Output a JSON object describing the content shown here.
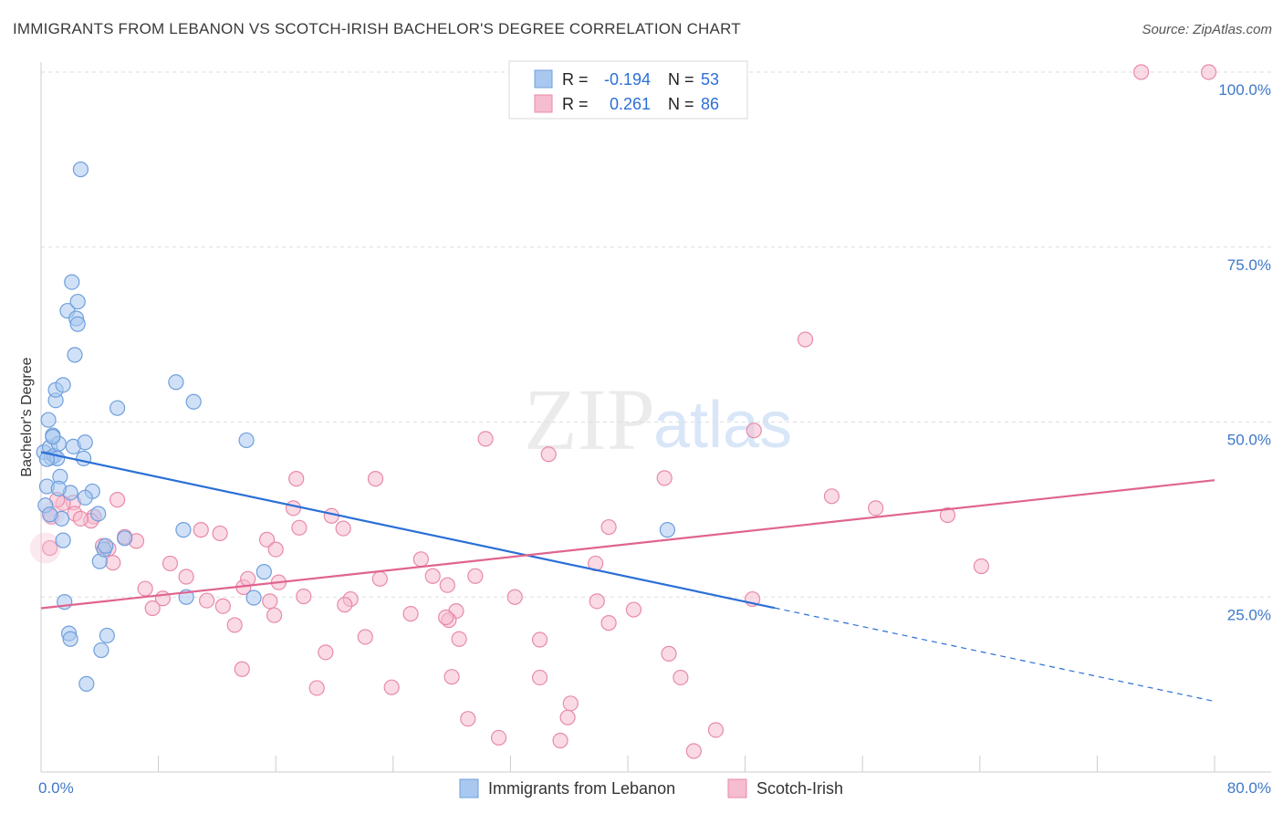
{
  "title": "IMMIGRANTS FROM LEBANON VS SCOTCH-IRISH BACHELOR'S DEGREE CORRELATION CHART",
  "source": "Source: ZipAtlas.com",
  "watermark": {
    "zip": "ZIP",
    "atlas": "atlas"
  },
  "colors": {
    "lebanon_fill": "#a9c8f0",
    "lebanon_stroke": "#6f9fdc",
    "lebanon_line": "#2b6fd6",
    "scotch_fill": "#f6bcd0",
    "scotch_stroke": "#e88aa8",
    "scotch_line": "#e0648f",
    "axis_label": "#3f78c8",
    "grid": "#dddddd"
  },
  "legend": {
    "rows": [
      {
        "r_label": "R =",
        "r_value": "-0.194",
        "n_label": "N =",
        "n_value": "53"
      },
      {
        "r_label": "R =",
        "r_value": "0.261",
        "n_label": "N =",
        "n_value": "86"
      }
    ]
  },
  "chart_data": {
    "type": "scatter",
    "title": "IMMIGRANTS FROM LEBANON VS SCOTCH-IRISH BACHELOR'S DEGREE CORRELATION CHART",
    "xlabel": "",
    "ylabel": "Bachelor's Degree",
    "xlim": [
      0,
      80
    ],
    "ylim": [
      0,
      100
    ],
    "x_tick_labels": [
      "0.0%",
      "80.0%"
    ],
    "y_ticks": [
      25,
      50,
      75,
      100
    ],
    "y_tick_labels": [
      "25.0%",
      "50.0%",
      "75.0%",
      "100.0%"
    ],
    "grid": true,
    "legend_position": "bottom",
    "series": [
      {
        "name": "Immigrants from Lebanon",
        "r": -0.194,
        "n": 53,
        "trend": {
          "x": [
            0,
            80
          ],
          "y": [
            45.7,
            10.1
          ],
          "solid_until_x": 50
        },
        "points": [
          [
            0.2,
            45.7
          ],
          [
            0.3,
            38.1
          ],
          [
            0.4,
            40.8
          ],
          [
            0.5,
            50.3
          ],
          [
            0.6,
            46.4
          ],
          [
            0.7,
            44.9
          ],
          [
            0.8,
            48.1
          ],
          [
            0.9,
            45.2
          ],
          [
            1.0,
            53.1
          ],
          [
            1.1,
            44.8
          ],
          [
            1.2,
            46.9
          ],
          [
            1.3,
            42.2
          ],
          [
            1.4,
            36.2
          ],
          [
            1.5,
            33.1
          ],
          [
            1.6,
            24.3
          ],
          [
            1.8,
            65.9
          ],
          [
            1.9,
            19.8
          ],
          [
            2.0,
            19.0
          ],
          [
            2.1,
            70.0
          ],
          [
            2.2,
            46.5
          ],
          [
            2.4,
            64.8
          ],
          [
            2.5,
            67.2
          ],
          [
            2.3,
            59.6
          ],
          [
            2.7,
            86.1
          ],
          [
            3.0,
            47.1
          ],
          [
            3.1,
            12.6
          ],
          [
            3.5,
            40.1
          ],
          [
            3.9,
            36.9
          ],
          [
            4.0,
            30.1
          ],
          [
            4.1,
            17.4
          ],
          [
            4.3,
            31.8
          ],
          [
            4.5,
            19.5
          ],
          [
            5.2,
            52.0
          ],
          [
            5.7,
            33.4
          ],
          [
            9.2,
            55.7
          ],
          [
            10.4,
            52.9
          ],
          [
            9.9,
            25.0
          ],
          [
            9.7,
            34.6
          ],
          [
            14.0,
            47.4
          ],
          [
            14.5,
            24.9
          ],
          [
            15.2,
            28.6
          ],
          [
            42.7,
            34.6
          ],
          [
            1.0,
            54.6
          ],
          [
            0.4,
            44.7
          ],
          [
            2.5,
            64.0
          ],
          [
            1.5,
            55.3
          ],
          [
            2.0,
            39.9
          ],
          [
            0.8,
            47.9
          ],
          [
            1.2,
            40.5
          ],
          [
            3.0,
            39.2
          ],
          [
            0.6,
            36.8
          ],
          [
            4.4,
            32.3
          ],
          [
            2.9,
            44.8
          ]
        ]
      },
      {
        "name": "Scotch-Irish",
        "r": 0.261,
        "n": 86,
        "trend": {
          "x": [
            0,
            80
          ],
          "y": [
            23.4,
            41.7
          ]
        },
        "points": [
          [
            75.0,
            100.0
          ],
          [
            79.6,
            100.0
          ],
          [
            52.1,
            61.8
          ],
          [
            48.6,
            48.8
          ],
          [
            30.3,
            47.6
          ],
          [
            34.6,
            45.4
          ],
          [
            42.5,
            42.0
          ],
          [
            17.4,
            41.9
          ],
          [
            22.8,
            41.9
          ],
          [
            53.9,
            39.4
          ],
          [
            56.9,
            37.7
          ],
          [
            61.8,
            36.7
          ],
          [
            64.1,
            29.4
          ],
          [
            37.8,
            29.8
          ],
          [
            38.7,
            35.0
          ],
          [
            37.9,
            24.4
          ],
          [
            38.7,
            21.3
          ],
          [
            40.4,
            23.2
          ],
          [
            42.8,
            16.9
          ],
          [
            43.6,
            13.5
          ],
          [
            34.0,
            18.9
          ],
          [
            35.9,
            7.8
          ],
          [
            36.1,
            9.8
          ],
          [
            35.4,
            4.5
          ],
          [
            32.3,
            25.0
          ],
          [
            34.0,
            13.5
          ],
          [
            31.2,
            4.9
          ],
          [
            29.6,
            28.0
          ],
          [
            27.7,
            26.7
          ],
          [
            28.3,
            23.0
          ],
          [
            27.8,
            21.7
          ],
          [
            26.7,
            28.0
          ],
          [
            25.9,
            30.4
          ],
          [
            25.2,
            22.6
          ],
          [
            27.6,
            22.1
          ],
          [
            28.5,
            19.0
          ],
          [
            28.0,
            13.6
          ],
          [
            29.1,
            7.6
          ],
          [
            23.1,
            27.6
          ],
          [
            22.1,
            19.3
          ],
          [
            23.9,
            12.1
          ],
          [
            21.1,
            24.7
          ],
          [
            20.7,
            23.9
          ],
          [
            19.8,
            36.6
          ],
          [
            20.6,
            34.8
          ],
          [
            19.4,
            17.1
          ],
          [
            18.8,
            12.0
          ],
          [
            17.2,
            37.7
          ],
          [
            17.6,
            34.9
          ],
          [
            17.9,
            25.1
          ],
          [
            15.4,
            33.2
          ],
          [
            16.0,
            31.8
          ],
          [
            16.2,
            27.1
          ],
          [
            15.6,
            24.4
          ],
          [
            15.9,
            22.4
          ],
          [
            13.8,
            26.4
          ],
          [
            13.2,
            21.0
          ],
          [
            13.7,
            14.7
          ],
          [
            14.1,
            27.6
          ],
          [
            12.2,
            34.1
          ],
          [
            12.4,
            23.7
          ],
          [
            11.3,
            24.5
          ],
          [
            10.9,
            34.6
          ],
          [
            9.9,
            27.9
          ],
          [
            8.8,
            29.8
          ],
          [
            8.3,
            24.8
          ],
          [
            7.6,
            23.4
          ],
          [
            7.1,
            26.2
          ],
          [
            6.5,
            33.0
          ],
          [
            5.7,
            33.6
          ],
          [
            5.2,
            38.9
          ],
          [
            4.9,
            29.9
          ],
          [
            4.6,
            31.9
          ],
          [
            4.2,
            32.3
          ],
          [
            3.6,
            36.5
          ],
          [
            3.4,
            35.9
          ],
          [
            2.2,
            38.5
          ],
          [
            2.3,
            36.9
          ],
          [
            1.5,
            38.4
          ],
          [
            1.1,
            38.9
          ],
          [
            0.7,
            36.5
          ],
          [
            0.6,
            32.0
          ],
          [
            2.7,
            36.2
          ],
          [
            44.5,
            3.0
          ],
          [
            46.0,
            6.0
          ],
          [
            48.5,
            24.7
          ]
        ]
      }
    ]
  },
  "x_axis": {
    "left_label": "0.0%",
    "right_label": "80.0%"
  },
  "bottom_legend": {
    "items": [
      "Immigrants from Lebanon",
      "Scotch-Irish"
    ]
  }
}
